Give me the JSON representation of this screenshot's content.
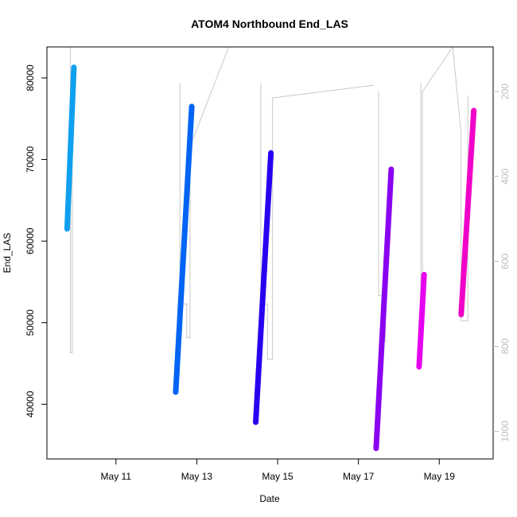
{
  "chart_data": {
    "type": "line",
    "title": "ATOM4 Northbound End_LAS",
    "xlabel": "Date",
    "ylabel": "End_LAS",
    "xlim": [
      "2024-05-09T07:00",
      "2024-05-20T08:00"
    ],
    "ylim": [
      33300,
      83800
    ],
    "y_ticks": [
      40000,
      50000,
      60000,
      70000,
      80000
    ],
    "x_ticks": [
      {
        "date": "2024-05-11T00:00",
        "label": "May 11"
      },
      {
        "date": "2024-05-13T00:00",
        "label": "May 13"
      },
      {
        "date": "2024-05-15T00:00",
        "label": "May 15"
      },
      {
        "date": "2024-05-17T00:00",
        "label": "May 17"
      },
      {
        "date": "2024-05-19T00:00",
        "label": "May 19"
      }
    ],
    "secondary_axis": {
      "side": "right",
      "ticks": [
        200,
        400,
        600,
        800,
        1000
      ],
      "reversed": true,
      "color": "#bdbdbd",
      "range": [
        95,
        1065
      ]
    },
    "series": [
      {
        "color": "#0fa0f0",
        "points": [
          [
            "2024-05-09T19:00",
            61500
          ],
          [
            "2024-05-09T23:00",
            81300
          ]
        ]
      },
      {
        "color": "#0064f5",
        "points": [
          [
            "2024-05-12T11:30",
            41500
          ],
          [
            "2024-05-12T21:00",
            76500
          ]
        ]
      },
      {
        "color": "#2800f0",
        "points": [
          [
            "2024-05-14T11:00",
            37800
          ],
          [
            "2024-05-14T20:00",
            70800
          ]
        ]
      },
      {
        "color": "#8a00f0",
        "points": [
          [
            "2024-05-17T10:30",
            34600
          ],
          [
            "2024-05-17T19:30",
            68800
          ]
        ]
      },
      {
        "color": "#e600f0",
        "points": [
          [
            "2024-05-18T12:00",
            44600
          ],
          [
            "2024-05-18T15:00",
            55900
          ]
        ]
      },
      {
        "color": "#f000c8",
        "points": [
          [
            "2024-05-19T13:00",
            51000
          ],
          [
            "2024-05-19T20:30",
            76000
          ]
        ]
      }
    ],
    "secondary_series": {
      "color": "#c8c8c8",
      "segments": [
        [
          [
            "2024-05-09T21:00",
            75
          ],
          [
            "2024-05-09T21:00",
            815
          ],
          [
            "2024-05-09T22:00",
            815
          ],
          [
            "2024-05-09T22:00",
            360
          ]
        ],
        [
          [
            "2024-05-12T14:00",
            180
          ],
          [
            "2024-05-12T14:00",
            700
          ],
          [
            "2024-05-12T18:00",
            700
          ],
          [
            "2024-05-12T18:00",
            780
          ],
          [
            "2024-05-12T20:00",
            780
          ],
          [
            "2024-05-12T20:00",
            330
          ],
          [
            "2024-05-13T19:00",
            40
          ]
        ],
        [
          [
            "2024-05-14T14:00",
            180
          ],
          [
            "2024-05-14T14:00",
            700
          ],
          [
            "2024-05-14T18:00",
            700
          ],
          [
            "2024-05-14T18:00",
            830
          ],
          [
            "2024-05-14T21:00",
            830
          ],
          [
            "2024-05-14T21:00",
            215
          ],
          [
            "2024-05-17T09:00",
            185
          ]
        ],
        [
          [
            "2024-05-17T12:00",
            200
          ],
          [
            "2024-05-17T12:00",
            680
          ],
          [
            "2024-05-17T16:00",
            680
          ],
          [
            "2024-05-17T16:00",
            790
          ]
        ],
        [
          [
            "2024-05-18T13:00",
            180
          ],
          [
            "2024-05-18T13:00",
            750
          ],
          [
            "2024-05-18T14:00",
            750
          ],
          [
            "2024-05-18T14:00",
            200
          ],
          [
            "2024-05-19T08:00",
            60
          ],
          [
            "2024-05-19T13:00",
            300
          ],
          [
            "2024-05-19T13:00",
            740
          ],
          [
            "2024-05-19T17:00",
            740
          ],
          [
            "2024-05-19T17:00",
            210
          ]
        ]
      ]
    },
    "grid": false,
    "legend": "none"
  }
}
